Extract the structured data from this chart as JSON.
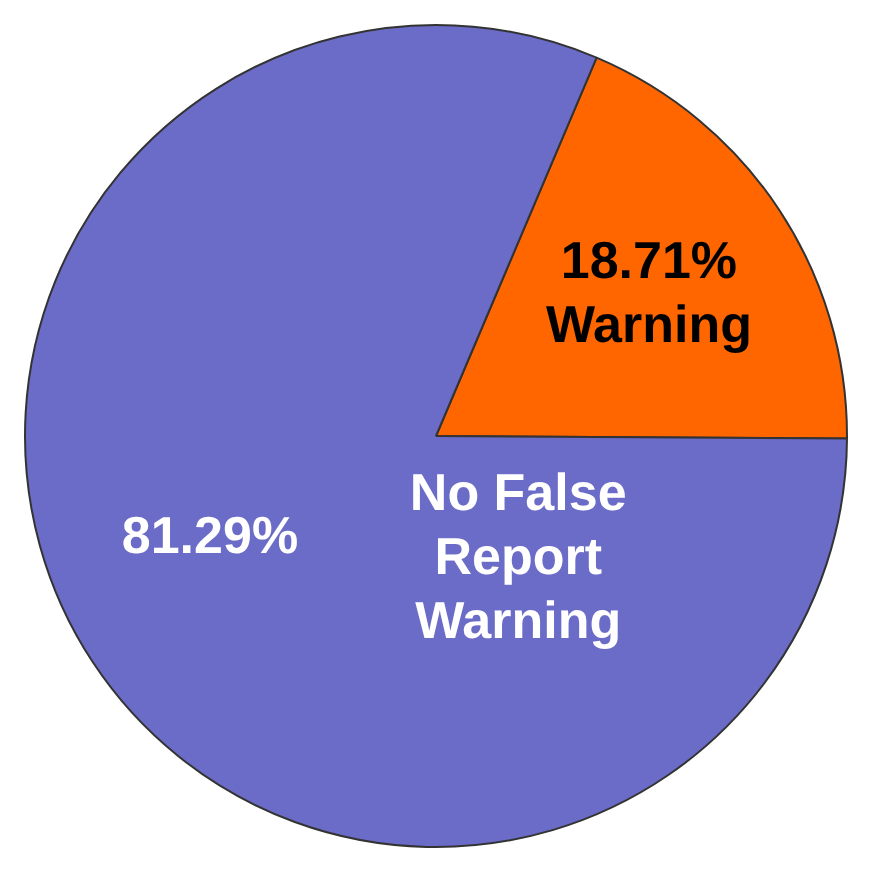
{
  "chart_data": {
    "type": "pie",
    "categories": [
      "Warning",
      "No False Report Warning"
    ],
    "values": [
      18.71,
      81.29
    ],
    "colors": [
      "#ff6600",
      "#6b6bc8"
    ],
    "value_labels": [
      "18.71%",
      "81.29%"
    ],
    "legend": false
  }
}
